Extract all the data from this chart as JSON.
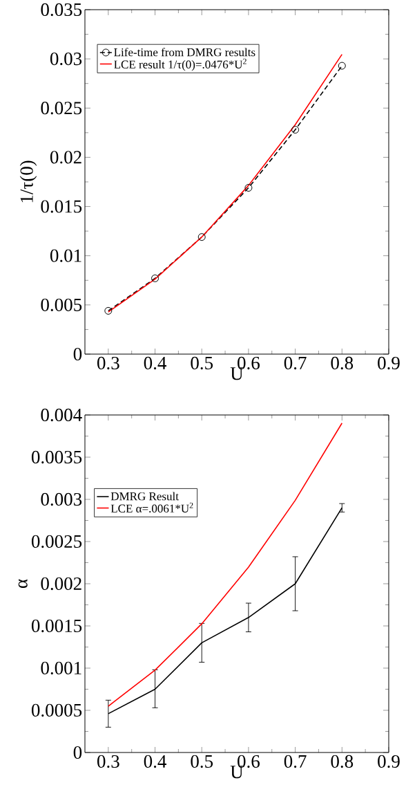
{
  "chart_data": [
    {
      "type": "line",
      "xlabel": "U",
      "ylabel": "1/τ(0)",
      "x": [
        0.3,
        0.4,
        0.5,
        0.6,
        0.7,
        0.8
      ],
      "xlim": [
        0.25,
        0.9
      ],
      "ylim": [
        0,
        0.035
      ],
      "xticks": [
        0.3,
        0.4,
        0.5,
        0.6,
        0.7,
        0.8,
        0.9
      ],
      "yticks": [
        0,
        0.005,
        0.01,
        0.015,
        0.02,
        0.025,
        0.03,
        0.035
      ],
      "legend": "top left",
      "series": [
        {
          "name": "Life-time from DMRG results",
          "color": "#000000",
          "marker": "circle",
          "line_style": "dashed",
          "values": [
            0.0044,
            0.0077,
            0.0119,
            0.0169,
            0.0228,
            0.0293
          ]
        },
        {
          "name": "LCE result 1/τ(0)=.0476*U$^{2}$",
          "color": "#ff0000",
          "values": [
            0.00428,
            0.00762,
            0.0119,
            0.01714,
            0.02332,
            0.03046
          ]
        }
      ]
    },
    {
      "type": "line",
      "xlabel": "U",
      "ylabel": "α",
      "x": [
        0.3,
        0.4,
        0.5,
        0.6,
        0.7,
        0.8
      ],
      "xlim": [
        0.25,
        0.9
      ],
      "ylim": [
        0,
        0.004
      ],
      "xticks": [
        0.3,
        0.4,
        0.5,
        0.6,
        0.7,
        0.8,
        0.9
      ],
      "yticks": [
        0,
        0.0005,
        0.001,
        0.0015,
        0.002,
        0.0025,
        0.003,
        0.0035,
        0.004
      ],
      "legend": "left",
      "series": [
        {
          "name": "DMRG Result",
          "color": "#000000",
          "values": [
            0.00046,
            0.00075,
            0.0013,
            0.0016,
            0.002,
            0.0029
          ],
          "errors": [
            [
              0.0003,
              0.00062
            ],
            [
              0.00053,
              0.00098
            ],
            [
              0.00107,
              0.00153
            ],
            [
              0.00143,
              0.00177
            ],
            [
              0.00168,
              0.00232
            ],
            [
              0.00285,
              0.00295
            ]
          ]
        },
        {
          "name": "LCE  α=.0061*U$^{2}$",
          "color": "#ff0000",
          "values": [
            0.000549,
            0.000976,
            0.001525,
            0.002196,
            0.002989,
            0.003904
          ]
        }
      ]
    }
  ]
}
